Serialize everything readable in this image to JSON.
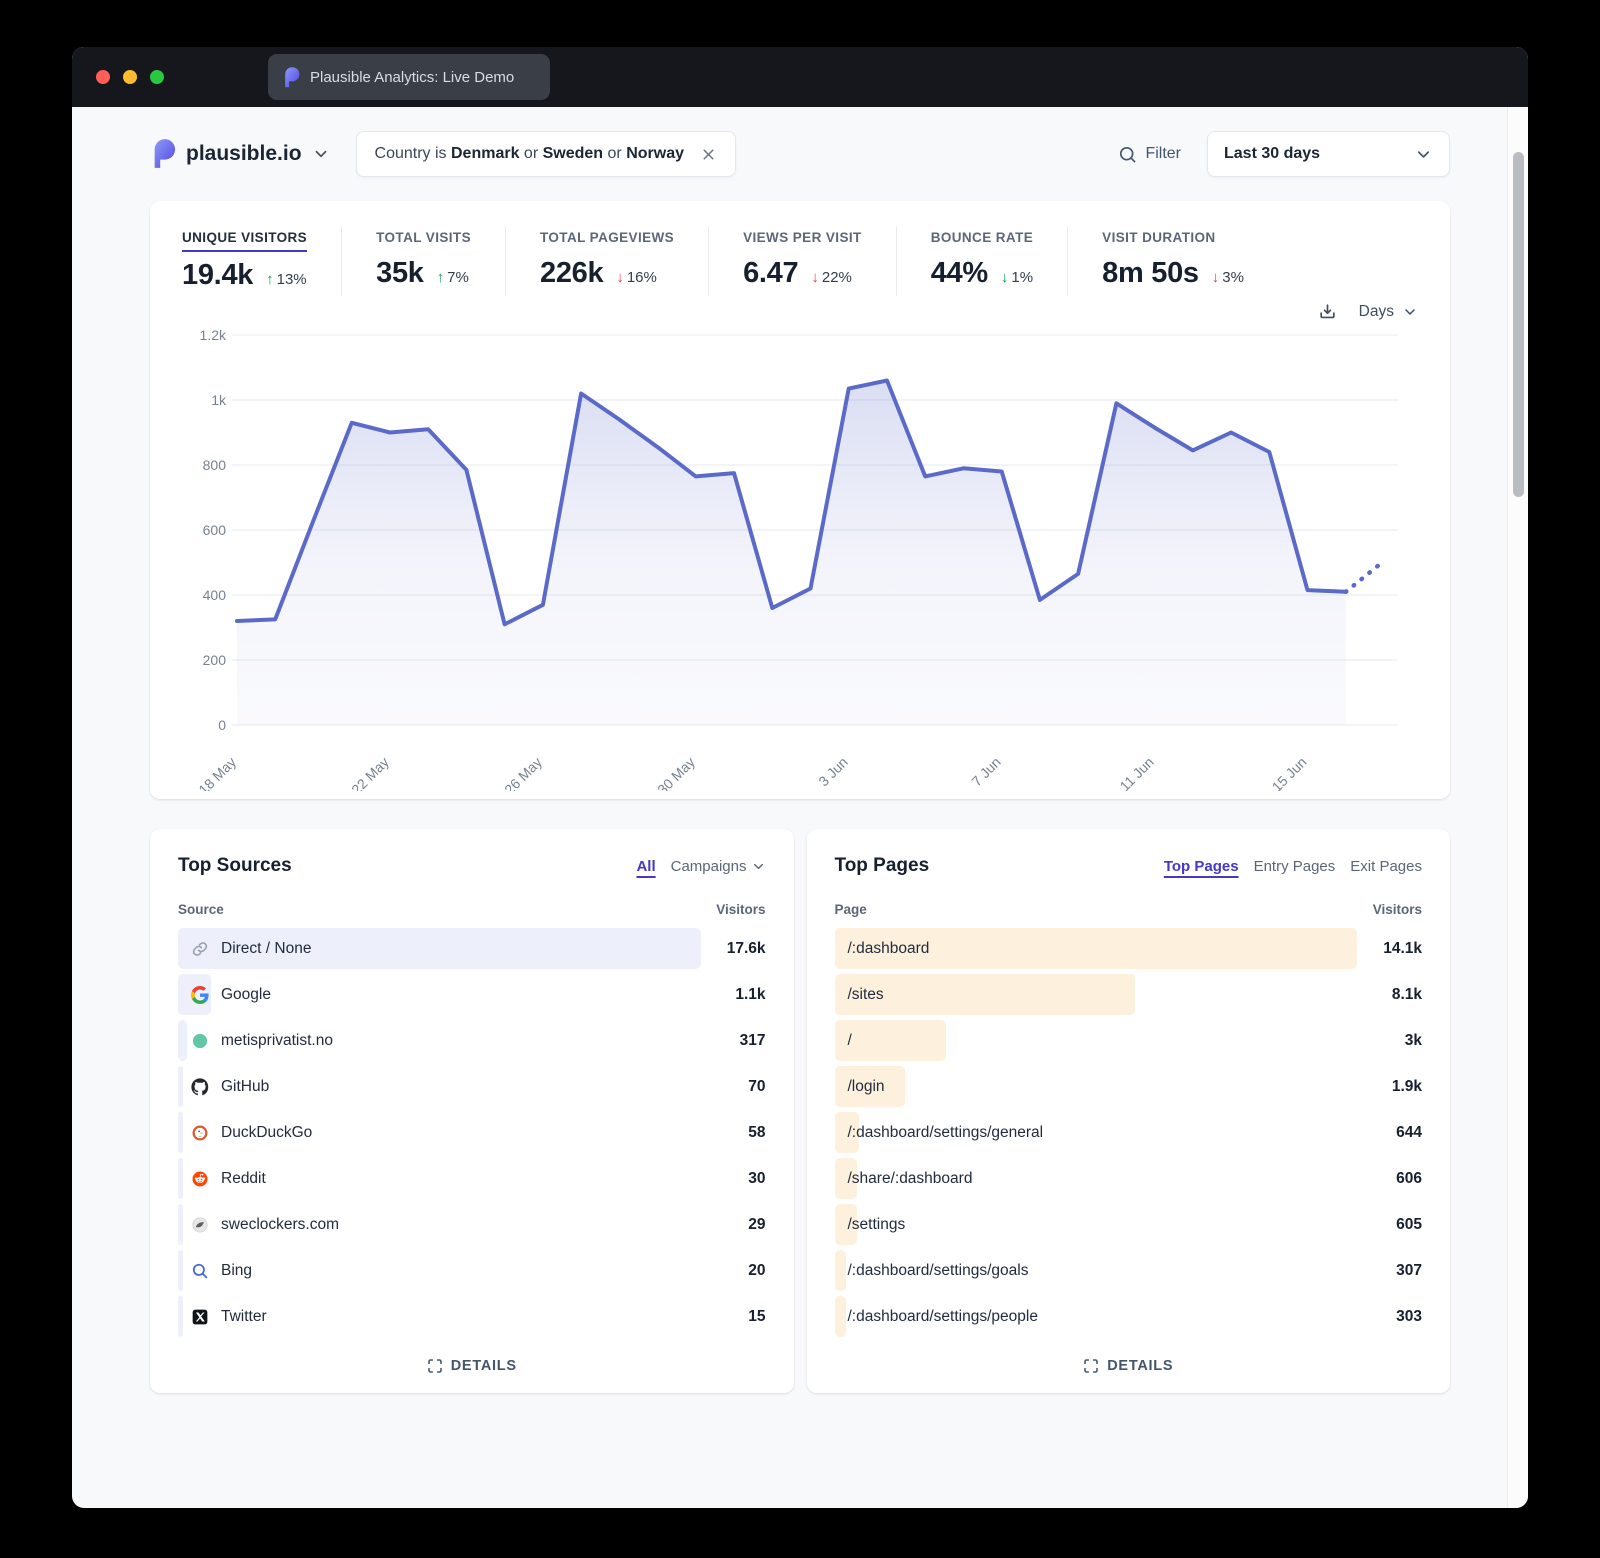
{
  "window": {
    "tab_title": "Plausible Analytics: Live Demo",
    "traffic_light_colors": [
      "#ff5f57",
      "#febc2e",
      "#28c840"
    ]
  },
  "header": {
    "site": "plausible.io",
    "filter_pill": {
      "prefix": "Country is",
      "joiner": "or",
      "values": [
        "Denmark",
        "Sweden",
        "Norway"
      ]
    },
    "filter_label": "Filter",
    "date_range": "Last 30 days"
  },
  "stats": [
    {
      "label": "UNIQUE VISITORS",
      "value": "19.4k",
      "direction": "up",
      "trend": "positive",
      "change": "13%",
      "active": true
    },
    {
      "label": "TOTAL VISITS",
      "value": "35k",
      "direction": "up",
      "trend": "positive",
      "change": "7%",
      "active": false
    },
    {
      "label": "TOTAL PAGEVIEWS",
      "value": "226k",
      "direction": "down",
      "trend": "negative",
      "change": "16%",
      "active": false
    },
    {
      "label": "VIEWS PER VISIT",
      "value": "6.47",
      "direction": "down",
      "trend": "negative",
      "change": "22%",
      "active": false
    },
    {
      "label": "BOUNCE RATE",
      "value": "44%",
      "direction": "down",
      "trend": "positive",
      "change": "1%",
      "active": false
    },
    {
      "label": "VISIT DURATION",
      "value": "8m 50s",
      "direction": "down",
      "trend": "negative",
      "change": "3%",
      "active": false
    }
  ],
  "chart_controls": {
    "interval": "Days",
    "download_icon": "download-icon"
  },
  "chart_data": {
    "type": "area",
    "title": "Unique visitors — last 30 days",
    "x": [
      "18 May",
      "19 May",
      "20 May",
      "21 May",
      "22 May",
      "23 May",
      "24 May",
      "25 May",
      "26 May",
      "27 May",
      "28 May",
      "29 May",
      "30 May",
      "31 May",
      "1 Jun",
      "2 Jun",
      "3 Jun",
      "4 Jun",
      "5 Jun",
      "6 Jun",
      "7 Jun",
      "8 Jun",
      "9 Jun",
      "10 Jun",
      "11 Jun",
      "12 Jun",
      "13 Jun",
      "14 Jun",
      "15 Jun",
      "16 Jun",
      "17 Jun"
    ],
    "values": [
      320,
      325,
      630,
      930,
      900,
      910,
      785,
      310,
      370,
      1020,
      940,
      855,
      765,
      775,
      360,
      420,
      1035,
      1060,
      765,
      790,
      780,
      385,
      465,
      990,
      915,
      845,
      900,
      840,
      415,
      410,
      505
    ],
    "dashed_tail_points": 2,
    "ylim": [
      0,
      1200
    ],
    "ytick_values": [
      0,
      200,
      400,
      600,
      800,
      1000,
      1200
    ],
    "ytick_labels": [
      "0",
      "200",
      "400",
      "600",
      "800",
      "1k",
      "1.2k"
    ],
    "xtick_indices": [
      0,
      4,
      8,
      12,
      16,
      20,
      24,
      28
    ],
    "grid": true,
    "legend": "none",
    "line_color": "#5b6ac8"
  },
  "top_sources": {
    "title": "Top Sources",
    "tabs": [
      {
        "label": "All",
        "active": true
      },
      {
        "label": "Campaigns",
        "active": false,
        "chevron": true
      }
    ],
    "col_left": "Source",
    "col_right": "Visitors",
    "bar_color": "#edf0fb",
    "bar_max_pct": 89,
    "rows": [
      {
        "icon": "link-icon",
        "label": "Direct / None",
        "visitors": "17.6k",
        "value": 17600
      },
      {
        "icon": "google-icon",
        "label": "Google",
        "visitors": "1.1k",
        "value": 1100
      },
      {
        "icon": "favicon-dot-icon",
        "label": "metisprivatist.no",
        "visitors": "317",
        "value": 317
      },
      {
        "icon": "github-icon",
        "label": "GitHub",
        "visitors": "70",
        "value": 70
      },
      {
        "icon": "duckduckgo-icon",
        "label": "DuckDuckGo",
        "visitors": "58",
        "value": 58
      },
      {
        "icon": "reddit-icon",
        "label": "Reddit",
        "visitors": "30",
        "value": 30
      },
      {
        "icon": "sweclockers-icon",
        "label": "sweclockers.com",
        "visitors": "29",
        "value": 29
      },
      {
        "icon": "search-favicon-icon",
        "label": "Bing",
        "visitors": "20",
        "value": 20
      },
      {
        "icon": "twitter-icon",
        "label": "Twitter",
        "visitors": "15",
        "value": 15
      }
    ],
    "details_label": "DETAILS"
  },
  "top_pages": {
    "title": "Top Pages",
    "tabs": [
      {
        "label": "Top Pages",
        "active": true
      },
      {
        "label": "Entry Pages",
        "active": false
      },
      {
        "label": "Exit Pages",
        "active": false
      }
    ],
    "col_left": "Page",
    "col_right": "Visitors",
    "bar_color": "#fdf0dd",
    "bar_max_pct": 89,
    "rows": [
      {
        "icon": null,
        "label": "/:dashboard",
        "visitors": "14.1k",
        "value": 14100
      },
      {
        "icon": null,
        "label": "/sites",
        "visitors": "8.1k",
        "value": 8100
      },
      {
        "icon": null,
        "label": "/",
        "visitors": "3k",
        "value": 3000
      },
      {
        "icon": null,
        "label": "/login",
        "visitors": "1.9k",
        "value": 1900
      },
      {
        "icon": null,
        "label": "/:dashboard/settings/general",
        "visitors": "644",
        "value": 644
      },
      {
        "icon": null,
        "label": "/share/:dashboard",
        "visitors": "606",
        "value": 606
      },
      {
        "icon": null,
        "label": "/settings",
        "visitors": "605",
        "value": 605
      },
      {
        "icon": null,
        "label": "/:dashboard/settings/goals",
        "visitors": "307",
        "value": 307
      },
      {
        "icon": null,
        "label": "/:dashboard/settings/people",
        "visitors": "303",
        "value": 303
      }
    ],
    "details_label": "DETAILS"
  },
  "colors": {
    "accent_indigo": "#4338ca",
    "line": "#5b6ac8",
    "sources_bar": "#edf0fb",
    "pages_bar": "#fdf0dd",
    "positive_green": "#13a450",
    "negative_red": "#e0434c",
    "titlebar": "#15171d",
    "page_bg": "#f8f9fb"
  }
}
